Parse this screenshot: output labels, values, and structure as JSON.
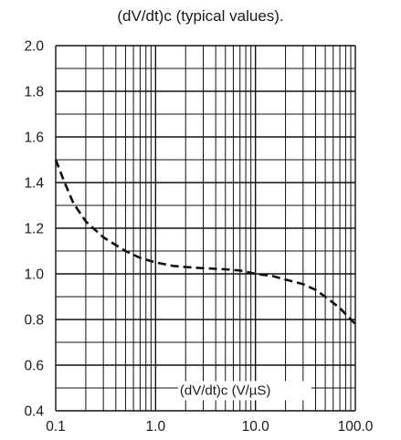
{
  "chart_data": {
    "type": "line",
    "title": "(dV/dt)c (typical values).",
    "xlabel": "",
    "ylabel": "",
    "x_scale": "log",
    "xlim": [
      0.1,
      100.0
    ],
    "ylim": [
      0.4,
      2.0
    ],
    "grid": true,
    "x_ticks": [
      {
        "value": 0.1,
        "label": "0.1"
      },
      {
        "value": 1.0,
        "label": "1.0"
      },
      {
        "value": 10.0,
        "label": "10.0"
      },
      {
        "value": 100.0,
        "label": "100.0"
      }
    ],
    "y_ticks": [
      {
        "value": 2.0,
        "label": "2.0"
      },
      {
        "value": 1.8,
        "label": "1.8"
      },
      {
        "value": 1.6,
        "label": "1.6"
      },
      {
        "value": 1.4,
        "label": "1.4"
      },
      {
        "value": 1.2,
        "label": "1.2"
      },
      {
        "value": 1.0,
        "label": "1.0"
      },
      {
        "value": 0.8,
        "label": "0.8"
      },
      {
        "value": 0.6,
        "label": "0.6"
      },
      {
        "value": 0.4,
        "label": "0.4"
      }
    ],
    "series": [
      {
        "name": "(dV/dt)c  (V/µS)",
        "line_style": "dashed",
        "color": "#111111",
        "x": [
          0.1,
          0.12,
          0.15,
          0.2,
          0.3,
          0.5,
          0.7,
          1.0,
          1.5,
          2.0,
          3.0,
          5.0,
          7.0,
          10.0,
          15.0,
          20.0,
          30.0,
          40.0,
          50.0,
          70.0,
          100.0
        ],
        "y": [
          1.5,
          1.41,
          1.31,
          1.23,
          1.16,
          1.1,
          1.07,
          1.05,
          1.035,
          1.03,
          1.025,
          1.02,
          1.015,
          1.0,
          0.99,
          0.975,
          0.955,
          0.93,
          0.9,
          0.85,
          0.78
        ]
      }
    ]
  }
}
